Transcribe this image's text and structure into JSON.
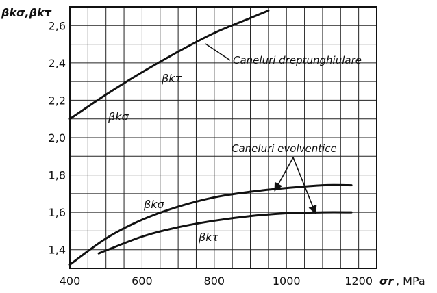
{
  "chart_data": {
    "type": "line",
    "title": "",
    "ylabel": "βkσ,βkτ",
    "xlabel_symbol": "σr",
    "xlabel_unit": ", MPa",
    "xlim": [
      400,
      1250
    ],
    "ylim": [
      1.3,
      2.7
    ],
    "grid": true,
    "x_ticks": [
      400,
      600,
      800,
      1000,
      1200
    ],
    "x_tick_labels": [
      "400",
      "600",
      "800",
      "1000",
      "1200"
    ],
    "y_ticks": [
      1.4,
      1.6,
      1.8,
      2.0,
      2.2,
      2.4,
      2.6
    ],
    "y_tick_labels": [
      "1,4",
      "1,6",
      "1,8",
      "2,0",
      "2,2",
      "2,4",
      "2,6"
    ],
    "series": [
      {
        "name": "Caneluri dreptunghiulare",
        "curve_labels": [
          "βkτ",
          "βkσ"
        ],
        "x": [
          400,
          500,
          600,
          700,
          800,
          900,
          950
        ],
        "y": [
          2.1,
          2.23,
          2.35,
          2.46,
          2.56,
          2.64,
          2.68
        ]
      },
      {
        "name": "Caneluri evolventice",
        "curve_label": "βkσ",
        "x": [
          400,
          500,
          600,
          700,
          800,
          900,
          1000,
          1100,
          1180
        ],
        "y": [
          1.32,
          1.46,
          1.56,
          1.63,
          1.68,
          1.71,
          1.73,
          1.745,
          1.745
        ]
      },
      {
        "name": "Caneluri evolventice",
        "curve_label": "βkτ",
        "x": [
          480,
          600,
          700,
          800,
          900,
          1000,
          1100,
          1180
        ],
        "y": [
          1.38,
          1.47,
          1.52,
          1.555,
          1.58,
          1.595,
          1.6,
          1.6
        ]
      }
    ],
    "annotations": {
      "drept": "Caneluri dreptunghiulare",
      "evol": "Caneluri evolventice"
    }
  }
}
